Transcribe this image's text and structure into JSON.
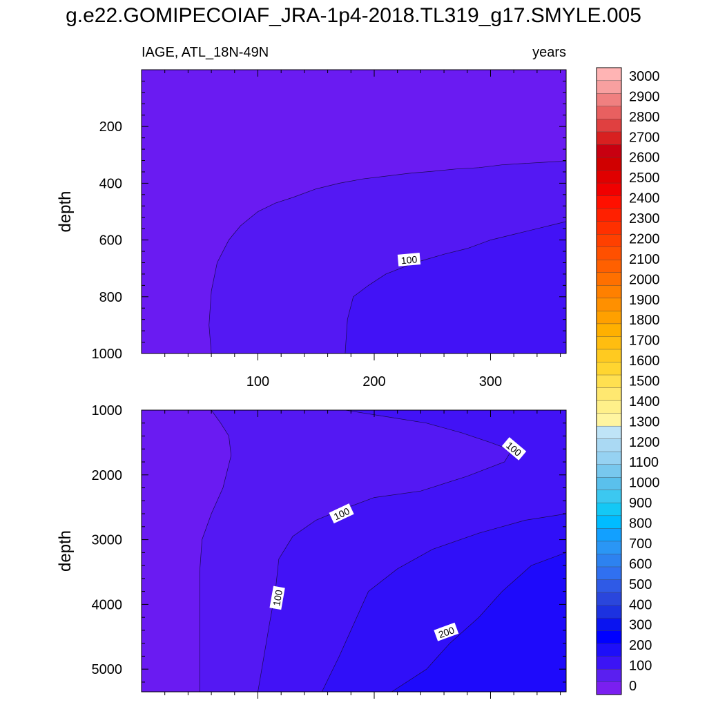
{
  "figure": {
    "title": "g.e22.GOMIPECOIAF_JRA-1p4-2018.TL319_g17.SMYLE.005"
  },
  "colorbar": {
    "labels": [
      "0",
      "100",
      "200",
      "300",
      "400",
      "500",
      "600",
      "700",
      "800",
      "900",
      "1000",
      "1100",
      "1200",
      "1300",
      "1400",
      "1500",
      "1600",
      "1700",
      "1800",
      "1900",
      "2000",
      "2100",
      "2200",
      "2300",
      "2400",
      "2500",
      "2600",
      "2700",
      "2800",
      "2900",
      "3000"
    ],
    "colors": [
      "#7a1ff0",
      "#5a1ff0",
      "#3c14f5",
      "#1e0ff8",
      "#0000ff",
      "#0a14f0",
      "#1c32e0",
      "#2a46dc",
      "#2f5ae6",
      "#3070f0",
      "#2d82f0",
      "#2a96f5",
      "#12a0ff",
      "#00bcff",
      "#14c8f5",
      "#3cc8f0",
      "#5ac0ec",
      "#78c8ee",
      "#96d2f2",
      "#aad9f3",
      "#bfe4f7",
      "#fff5a0",
      "#fff08a",
      "#ffe870",
      "#ffe050",
      "#ffd530",
      "#ffca20",
      "#ffbd10",
      "#ffb000",
      "#ffa000",
      "#ff9000",
      "#ff8000",
      "#ff7000",
      "#ff6000",
      "#ff5000",
      "#ff4000",
      "#ff3000",
      "#ff2000",
      "#ff1000",
      "#f00000",
      "#e00000",
      "#d00000",
      "#c80010",
      "#d82020",
      "#e04040",
      "#e86060",
      "#f08080",
      "#f8a0a0",
      "#ffb4b4"
    ]
  },
  "chart_data": [
    {
      "type": "contour",
      "title": "IAGE, ATL_18N-49N",
      "units_label": "years",
      "xlabel": "",
      "ylabel": "depth",
      "xlim": [
        0,
        365
      ],
      "ylim": [
        0,
        1000
      ],
      "y_reversed": true,
      "xticks": [
        100,
        200,
        300
      ],
      "yticks": [
        200,
        400,
        600,
        800,
        1000
      ],
      "contour_labels": [
        {
          "x": 230,
          "y": 670,
          "text": "100",
          "angle": -5
        }
      ],
      "bands": [
        {
          "level": "0-50",
          "color": "#6a1bf2",
          "boundary": null
        },
        {
          "level": "50-100",
          "color": "#5418f3",
          "boundary": [
            [
              60,
              1000
            ],
            [
              58,
              900
            ],
            [
              60,
              780
            ],
            [
              65,
              680
            ],
            [
              75,
              600
            ],
            [
              85,
              550
            ],
            [
              100,
              500
            ],
            [
              115,
              470
            ],
            [
              130,
              450
            ],
            [
              150,
              420
            ],
            [
              170,
              400
            ],
            [
              190,
              385
            ],
            [
              210,
              375
            ],
            [
              230,
              365
            ],
            [
              250,
              358
            ],
            [
              270,
              350
            ],
            [
              290,
              345
            ],
            [
              310,
              335
            ],
            [
              330,
              330
            ],
            [
              350,
              325
            ],
            [
              365,
              322
            ],
            [
              365,
              1000
            ]
          ]
        },
        {
          "level": "100-150",
          "color": "#4212f6",
          "boundary": [
            [
              175,
              1000
            ],
            [
              177,
              880
            ],
            [
              182,
              800
            ],
            [
              195,
              760
            ],
            [
              210,
              720
            ],
            [
              235,
              680
            ],
            [
              260,
              650
            ],
            [
              280,
              630
            ],
            [
              300,
              600
            ],
            [
              320,
              580
            ],
            [
              340,
              560
            ],
            [
              355,
              545
            ],
            [
              365,
              535
            ],
            [
              365,
              1000
            ]
          ]
        }
      ]
    },
    {
      "type": "contour",
      "title": "",
      "xlabel": "",
      "ylabel": "depth",
      "xlim": [
        0,
        365
      ],
      "ylim": [
        1000,
        5350
      ],
      "y_reversed": true,
      "xticks": [
        100,
        200,
        300
      ],
      "yticks": [
        1000,
        2000,
        3000,
        4000,
        5000
      ],
      "contour_labels": [
        {
          "x": 320,
          "y": 1600,
          "text": "100",
          "angle": 40
        },
        {
          "x": 172,
          "y": 2600,
          "text": "100",
          "angle": -25
        },
        {
          "x": 117,
          "y": 3900,
          "text": "100",
          "angle": -80
        },
        {
          "x": 262,
          "y": 4430,
          "text": "200",
          "angle": -20
        }
      ],
      "bands": [
        {
          "level": "0-50",
          "color": "#6a1bf2",
          "boundary": null
        },
        {
          "level": "50-100",
          "color": "#5418f3",
          "boundary": [
            [
              60,
              1000
            ],
            [
              68,
              1200
            ],
            [
              75,
              1400
            ],
            [
              77,
              1700
            ],
            [
              70,
              2200
            ],
            [
              60,
              2600
            ],
            [
              52,
              3000
            ],
            [
              50,
              3500
            ],
            [
              50,
              4200
            ],
            [
              50,
              5350
            ],
            [
              365,
              5350
            ],
            [
              365,
              1000
            ]
          ]
        },
        {
          "level": "100-150",
          "color": "#4212f6",
          "boundary": [
            [
              175,
              1000
            ],
            [
              210,
              1100
            ],
            [
              245,
              1200
            ],
            [
              275,
              1350
            ],
            [
              300,
              1500
            ],
            [
              318,
              1620
            ],
            [
              312,
              1800
            ],
            [
              280,
              2020
            ],
            [
              240,
              2250
            ],
            [
              200,
              2350
            ],
            [
              170,
              2550
            ],
            [
              150,
              2700
            ],
            [
              130,
              2950
            ],
            [
              118,
              3300
            ],
            [
              115,
              3800
            ],
            [
              110,
              4300
            ],
            [
              100,
              5350
            ],
            [
              365,
              5350
            ],
            [
              365,
              1000
            ]
          ]
        },
        {
          "level": "150-200",
          "color": "#300ff8",
          "boundary": [
            [
              365,
              2600
            ],
            [
              330,
              2700
            ],
            [
              290,
              2900
            ],
            [
              250,
              3150
            ],
            [
              220,
              3450
            ],
            [
              195,
              3800
            ],
            [
              185,
              4200
            ],
            [
              170,
              4800
            ],
            [
              155,
              5350
            ],
            [
              365,
              5350
            ]
          ]
        },
        {
          "level": "200-250",
          "color": "#1e0afb",
          "boundary": [
            [
              365,
              3200
            ],
            [
              335,
              3400
            ],
            [
              310,
              3800
            ],
            [
              290,
              4200
            ],
            [
              265,
              4600
            ],
            [
              245,
              5000
            ],
            [
              215,
              5350
            ],
            [
              365,
              5350
            ]
          ]
        }
      ]
    }
  ]
}
